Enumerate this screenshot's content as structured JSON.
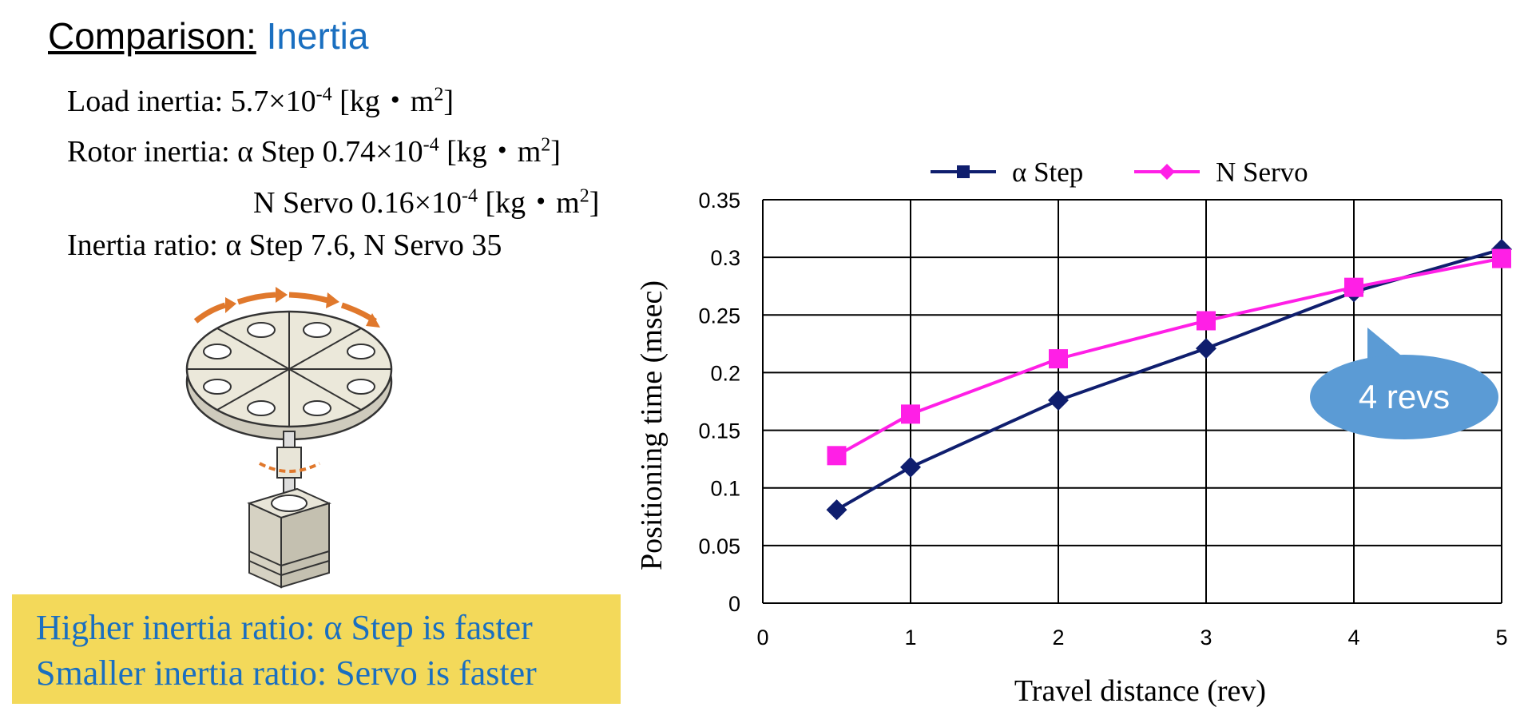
{
  "slide": {
    "title_prefix": "Comparison:",
    "title_topic": "Inertia",
    "load_inertia": {
      "label": "Load inertia: 5.7×10",
      "exp": "-4",
      "unit_pre": " [kg・m",
      "unit_exp": "2",
      "unit_post": "]"
    },
    "rotor_inertia_step": {
      "label": "Rotor inertia: α Step 0.74×10",
      "exp": "-4",
      "unit_pre": " [kg・m",
      "unit_exp": "2",
      "unit_post": "]"
    },
    "rotor_inertia_servo": {
      "label": "N Servo 0.16×10",
      "exp": "-4",
      "unit_pre": " [kg・m",
      "unit_exp": "2",
      "unit_post": "]"
    },
    "inertia_ratio": "Inertia ratio: α Step  7.6, N Servo 35",
    "callout_line1": "Higher inertia ratio: α Step is faster",
    "callout_line2": "Smaller inertia ratio: Servo is faster",
    "bubble_text": "4 revs",
    "colors": {
      "title_blue": "#1a6fc0",
      "callout_bg": "#f3d95a",
      "bubble": "#5b9bd5",
      "turntable_arrows": "#e0782c"
    }
  },
  "chart_data": {
    "type": "line",
    "xlabel": "Travel distance (rev)",
    "ylabel": "Positioning time (msec)",
    "xlim": [
      0,
      5
    ],
    "ylim": [
      0,
      0.35
    ],
    "x_ticks": [
      "0",
      "1",
      "2",
      "3",
      "4",
      "5"
    ],
    "y_ticks": [
      "0",
      "0.05",
      "0.1",
      "0.15",
      "0.2",
      "0.25",
      "0.3",
      "0.35"
    ],
    "grid": true,
    "legend_position": "top",
    "series": [
      {
        "name": "α Step",
        "color": "#0f1e6e",
        "marker": "diamond",
        "x": [
          0.5,
          1,
          2,
          3,
          4,
          5
        ],
        "y": [
          0.081,
          0.118,
          0.176,
          0.221,
          0.27,
          0.307
        ]
      },
      {
        "name": "N Servo",
        "color": "#ff1fe6",
        "marker": "square",
        "x": [
          0.5,
          1,
          2,
          3,
          4,
          5
        ],
        "y": [
          0.128,
          0.164,
          0.212,
          0.245,
          0.274,
          0.299
        ]
      }
    ]
  }
}
